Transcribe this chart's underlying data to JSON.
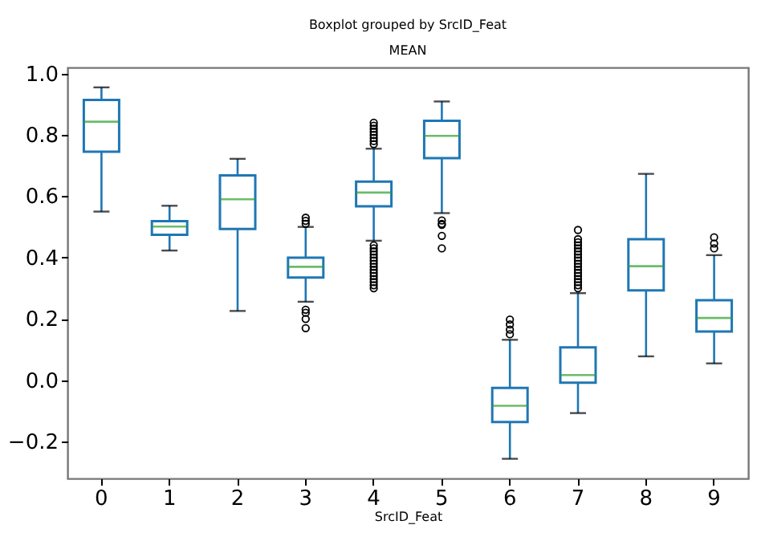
{
  "chart_data": {
    "type": "box",
    "title": "Boxplot grouped by SrcID_Feat",
    "subtitle": "MEAN",
    "xlabel": "SrcID_Feat",
    "categories": [
      "0",
      "1",
      "2",
      "3",
      "4",
      "5",
      "6",
      "7",
      "8",
      "9"
    ],
    "ylim": [
      -0.32,
      1.02
    ],
    "yticks": [
      {
        "value": -0.2,
        "label": "−0.2"
      },
      {
        "value": 0,
        "label": "0.0"
      },
      0.2,
      0.4,
      0.6,
      0.8,
      {
        "value": 1,
        "label": "1.0"
      }
    ],
    "grid": false,
    "series": [
      {
        "color": "#1f77b4",
        "boxes": [
          {
            "low": 0.55,
            "q1": 0.745,
            "median": 0.843,
            "q3": 0.914,
            "high": 0.955
          },
          {
            "low": 0.423,
            "q1": 0.474,
            "median": 0.501,
            "q3": 0.519,
            "high": 0.569
          },
          {
            "low": 0.226,
            "q1": 0.493,
            "median": 0.59,
            "q3": 0.668,
            "high": 0.722
          },
          {
            "low": 0.256,
            "q1": 0.335,
            "median": 0.37,
            "q3": 0.4,
            "high": 0.5,
            "outliers": [
              0.51,
              0.52,
              0.53,
              0.23,
              0.22,
              0.2,
              0.17
            ]
          },
          {
            "low": 0.455,
            "q1": 0.567,
            "median": 0.612,
            "q3": 0.648,
            "high": 0.755,
            "outliers": [
              0.77,
              0.78,
              0.79,
              0.8,
              0.81,
              0.82,
              0.83,
              0.84,
              0.3,
              0.31,
              0.32,
              0.33,
              0.34,
              0.35,
              0.36,
              0.37,
              0.38,
              0.39,
              0.4,
              0.41,
              0.42,
              0.43,
              0.44
            ]
          },
          {
            "low": 0.545,
            "q1": 0.724,
            "median": 0.797,
            "q3": 0.846,
            "high": 0.909,
            "outliers": [
              0.521,
              0.51,
              0.507,
              0.471,
              0.43
            ]
          },
          {
            "low": -0.256,
            "q1": -0.136,
            "median": -0.083,
            "q3": -0.025,
            "high": 0.132,
            "outliers": [
              0.15,
              0.165,
              0.182,
              0.198
            ]
          },
          {
            "low": -0.107,
            "q1": -0.008,
            "median": 0.017,
            "q3": 0.107,
            "high": 0.284,
            "outliers": [
              0.3,
              0.31,
              0.32,
              0.33,
              0.34,
              0.35,
              0.36,
              0.37,
              0.38,
              0.39,
              0.4,
              0.41,
              0.42,
              0.43,
              0.44,
              0.45,
              0.46,
              0.49
            ]
          },
          {
            "low": 0.078,
            "q1": 0.293,
            "median": 0.372,
            "q3": 0.46,
            "high": 0.673
          },
          {
            "low": 0.055,
            "q1": 0.159,
            "median": 0.203,
            "q3": 0.261,
            "high": 0.408,
            "outliers": [
              0.43,
              0.446,
              0.466
            ]
          }
        ]
      }
    ]
  }
}
